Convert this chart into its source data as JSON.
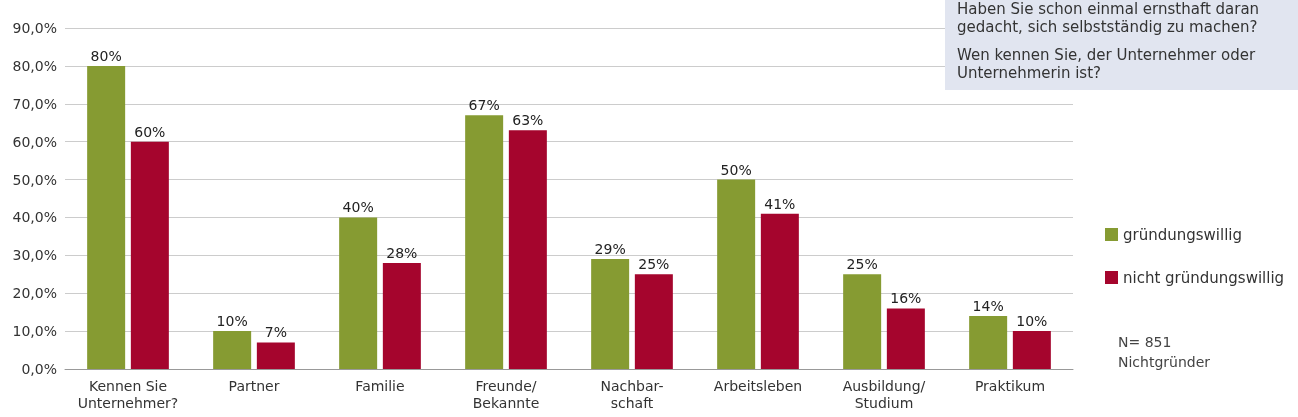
{
  "chart_data": {
    "type": "bar",
    "categories": [
      "Kennen Sie\nUnternehmer?",
      "Partner",
      "Familie",
      "Freunde/\nBekannte",
      "Nachbar-\nschaft",
      "Arbeitsleben",
      "Ausbildung/\nStudium",
      "Praktikum"
    ],
    "series": [
      {
        "name": "gründungswillig",
        "color": "#869b32",
        "values": [
          80,
          10,
          40,
          67,
          29,
          50,
          25,
          14
        ],
        "value_labels": [
          "80%",
          "10%",
          "40%",
          "67%",
          "29%",
          "50%",
          "25%",
          "14%"
        ]
      },
      {
        "name": "nicht gründungswillig",
        "color": "#a5052d",
        "values": [
          60,
          7,
          28,
          63,
          25,
          41,
          16,
          10
        ],
        "value_labels": [
          "60%",
          "7%",
          "28%",
          "63%",
          "25%",
          "41%",
          "16%",
          "10%"
        ]
      }
    ],
    "ylim": [
      0,
      90
    ],
    "yticks": [
      {
        "value": 0,
        "label": "0,0%"
      },
      {
        "value": 10,
        "label": "10,0%"
      },
      {
        "value": 20,
        "label": "20,0%"
      },
      {
        "value": 30,
        "label": "30,0%"
      },
      {
        "value": 40,
        "label": "40,0%"
      },
      {
        "value": 50,
        "label": "50,0%"
      },
      {
        "value": 60,
        "label": "60,0%"
      },
      {
        "value": 70,
        "label": "70,0%"
      },
      {
        "value": 80,
        "label": "80,0%"
      },
      {
        "value": 90,
        "label": "90,0%"
      }
    ],
    "grid": "y",
    "legend": "right",
    "annotations": [
      "Haben Sie schon einmal ernsthaft daran gedacht, sich selbstständig zu machen?",
      "Wen kennen Sie, der Unternehmer oder Unternehmerin ist?",
      "N= 851\nNichtgründer"
    ]
  }
}
